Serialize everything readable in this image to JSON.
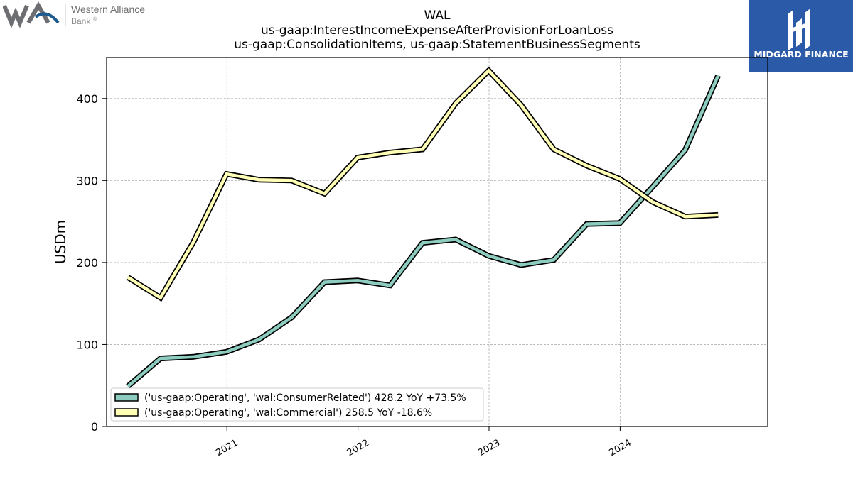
{
  "header": {
    "left_logo": {
      "name": "Western Alliance",
      "sub": "Bank",
      "mark": "®"
    },
    "right_logo": {
      "name": "MIDGARD FINANCE"
    }
  },
  "colors": {
    "series_consumer": "#8dcdc0",
    "series_commercial": "#ffffb5",
    "line_outline": "#000000",
    "grid": "#b0b0b0",
    "midgard_bg": "#2b5aa8",
    "wal_grey": "#6d6e71",
    "wal_blue": "#1d5a8f"
  },
  "chart_data": {
    "type": "line",
    "title": [
      "WAL",
      "us-gaap:InterestIncomeExpenseAfterProvisionForLoanLoss",
      "us-gaap:ConsolidationItems, us-gaap:StatementBusinessSegments"
    ],
    "xlabel": "",
    "ylabel": "USDm",
    "ylim": [
      0,
      450
    ],
    "yticks": [
      0,
      100,
      200,
      300,
      400
    ],
    "xlim": [
      "2020-02-01",
      "2025-02-15"
    ],
    "xticks": [
      {
        "date": "2021-01-01",
        "label": "2021"
      },
      {
        "date": "2022-01-01",
        "label": "2022"
      },
      {
        "date": "2023-01-01",
        "label": "2023"
      },
      {
        "date": "2024-01-01",
        "label": "2024"
      }
    ],
    "grid": true,
    "legend_position": "lower-left",
    "x": [
      "2020-03-31",
      "2020-06-30",
      "2020-09-30",
      "2020-12-31",
      "2021-03-31",
      "2021-06-30",
      "2021-09-30",
      "2021-12-31",
      "2022-03-31",
      "2022-06-30",
      "2022-09-30",
      "2022-12-31",
      "2023-03-31",
      "2023-06-30",
      "2023-09-30",
      "2023-12-31",
      "2024-03-31",
      "2024-06-30",
      "2024-09-30"
    ],
    "series": [
      {
        "name": "('us-gaap:Operating', 'wal:ConsumerRelated') 428.2 YoY +73.5%",
        "values": [
          49,
          83,
          85,
          91,
          106,
          133,
          176,
          178,
          172,
          224,
          228,
          208,
          197,
          203,
          247,
          248,
          292,
          337,
          428
        ]
      },
      {
        "name": "('us-gaap:Operating', 'wal:Commercial') 258.5 YoY -18.6%",
        "values": [
          182,
          157,
          225,
          308,
          301,
          300,
          284,
          328,
          334,
          338,
          394,
          434,
          392,
          338,
          318,
          302,
          274,
          256,
          258
        ]
      }
    ]
  }
}
